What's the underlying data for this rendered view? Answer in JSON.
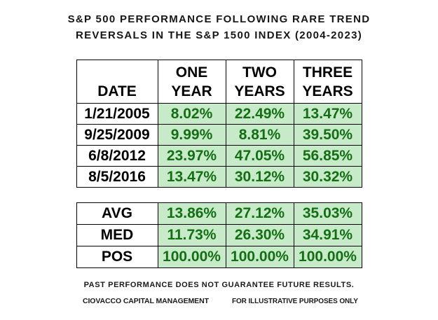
{
  "title": {
    "line1": "S&P 500 PERFORMANCE FOLLOWING RARE TREND",
    "line2": "REVERSALS IN THE S&P 1500 INDEX (2004-2023)"
  },
  "table_header": {
    "date_label": "DATE",
    "col1": {
      "l1": "ONE",
      "l2": "YEAR"
    },
    "col2": {
      "l1": "TWO",
      "l2": "YEARS"
    },
    "col3": {
      "l1": "THREE",
      "l2": "YEARS"
    }
  },
  "chart_data": {
    "type": "table",
    "title": "S&P 500 PERFORMANCE FOLLOWING RARE TREND REVERSALS IN THE S&P 1500 INDEX (2004-2023)",
    "columns": [
      "DATE",
      "ONE YEAR",
      "TWO YEARS",
      "THREE YEARS"
    ],
    "rows": [
      [
        "1/21/2005",
        "8.02%",
        "22.49%",
        "13.47%"
      ],
      [
        "9/25/2009",
        "9.99%",
        "8.81%",
        "39.50%"
      ],
      [
        "6/8/2012",
        "23.97%",
        "47.05%",
        "56.85%"
      ],
      [
        "8/5/2016",
        "13.47%",
        "30.12%",
        "30.32%"
      ]
    ],
    "summary_rows": [
      [
        "AVG",
        "13.86%",
        "27.12%",
        "35.03%"
      ],
      [
        "MED",
        "11.73%",
        "26.30%",
        "34.91%"
      ],
      [
        "POS",
        "100.00%",
        "100.00%",
        "100.00%"
      ]
    ],
    "notes": [
      "PAST PERFORMANCE DOES NOT GUARANTEE FUTURE RESULTS.",
      "FOR ILLUSTRATIVE PURPOSES ONLY"
    ],
    "source": "CIOVACCO CAPITAL MANAGEMENT"
  },
  "footer": {
    "disclaimer": "PAST PERFORMANCE DOES NOT GUARANTEE FUTURE RESULTS.",
    "left": "CIOVACCO CAPITAL MANAGEMENT",
    "right": "FOR ILLUSTRATIVE PURPOSES ONLY"
  },
  "colors": {
    "cell_fill_green": "#c7eac9",
    "cell_text_green": "#146f14",
    "border": "#000000"
  }
}
